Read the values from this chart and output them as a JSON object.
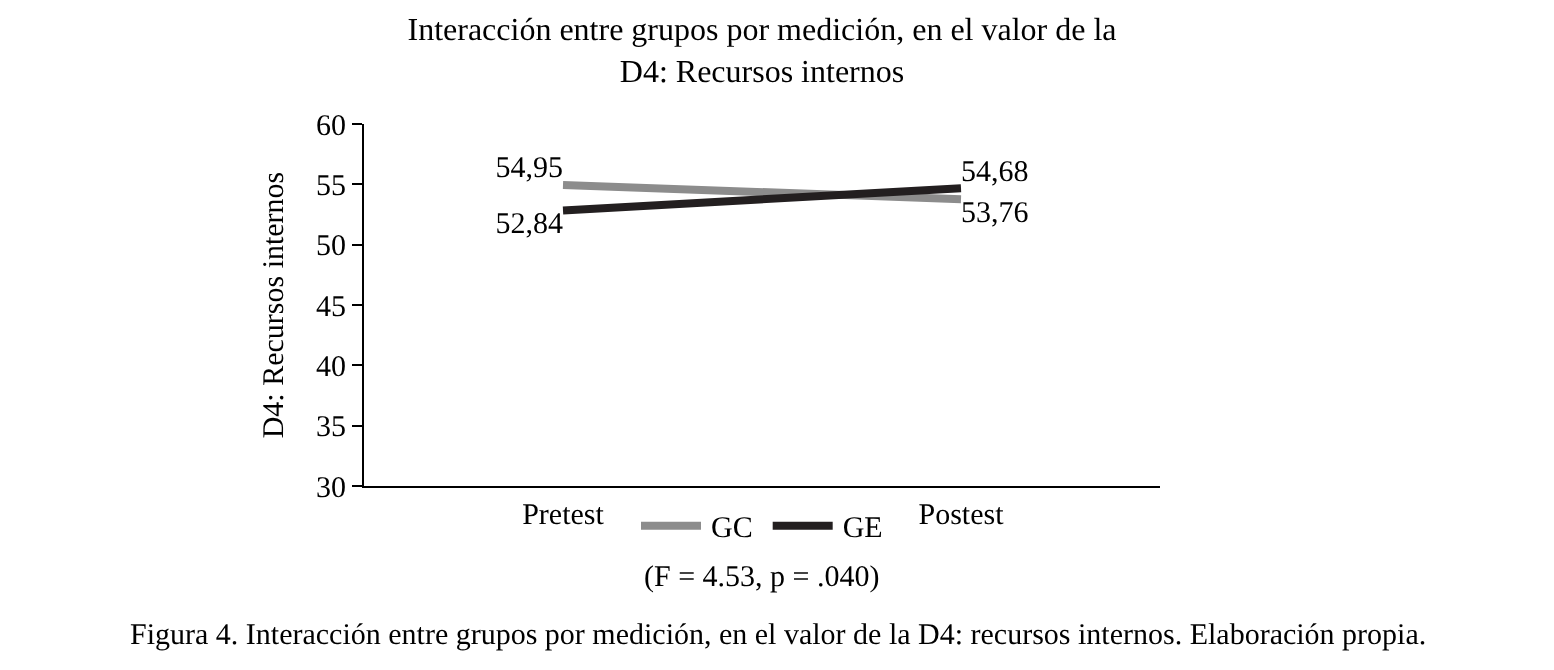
{
  "chart_data": {
    "type": "line",
    "title": "Interacción entre grupos por medición, en el valor de la\nD4: Recursos internos",
    "ylabel": "D4: Recursos internos",
    "categories": [
      "Pretest",
      "Postest"
    ],
    "series": [
      {
        "name": "GC",
        "color": "#8c8c8c",
        "values": [
          54.95,
          53.76
        ],
        "value_labels": [
          "54,95",
          "53,76"
        ]
      },
      {
        "name": "GE",
        "color": "#231f20",
        "values": [
          52.84,
          54.68
        ],
        "value_labels": [
          "52,84",
          "54,68"
        ]
      }
    ],
    "ylim": [
      30,
      60
    ],
    "yticks": [
      30,
      35,
      40,
      45,
      50,
      55,
      60
    ],
    "grid": false,
    "legend": "bottom",
    "marker": "none",
    "line_style": "solid",
    "annotations": [
      "(F = 4.53, p = .040)",
      "Figura 4. Interacción entre grupos por medición, en el valor de la D4: recursos internos. Elaboración propia."
    ]
  }
}
